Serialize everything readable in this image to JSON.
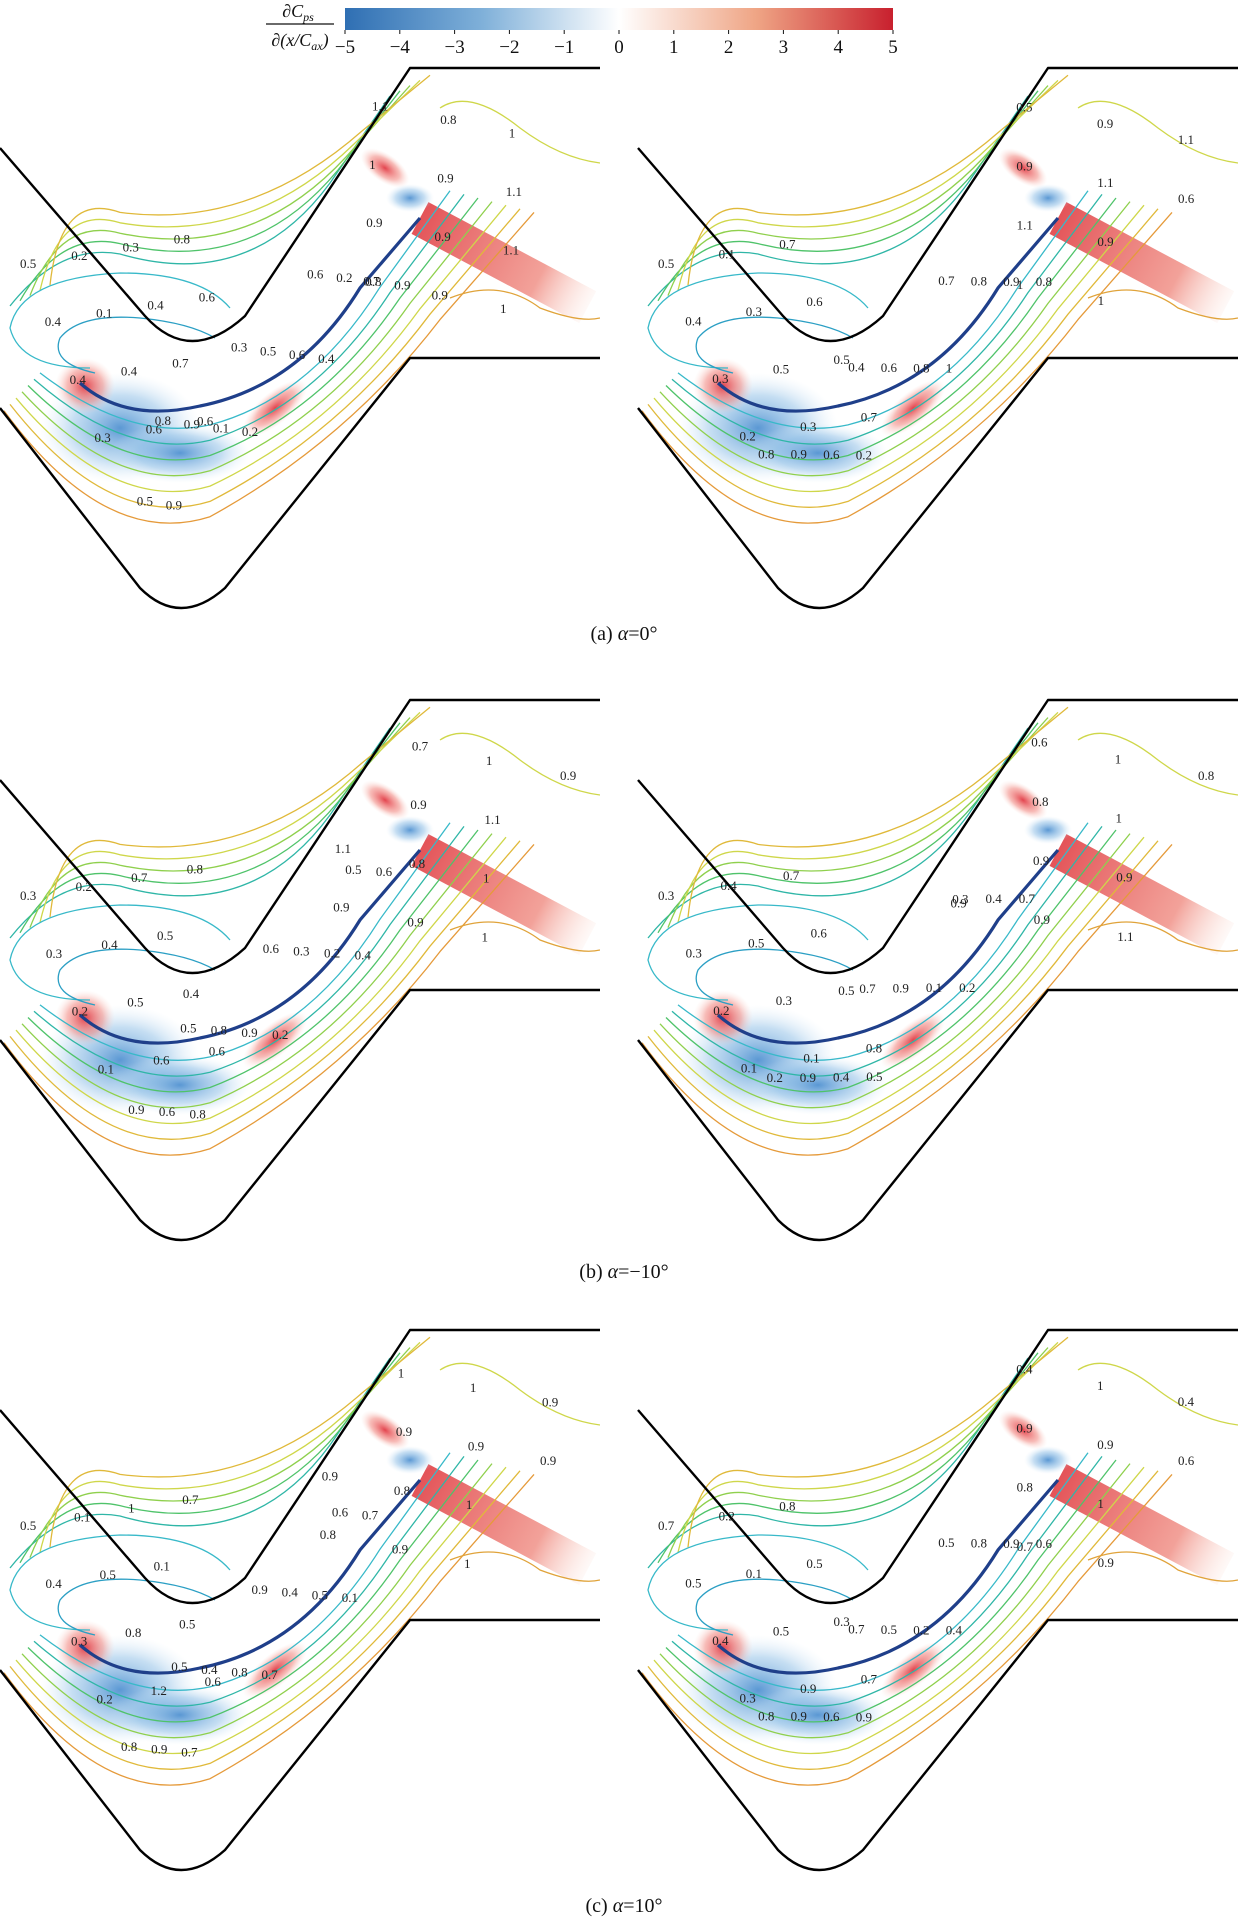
{
  "colorbar": {
    "label_numerator": "∂C",
    "label_numerator_sub": "ps",
    "label_denominator_pre": "∂(x/C",
    "label_denominator_sub": "ax",
    "label_denominator_post": ")",
    "ticks": [
      "−5",
      "−4",
      "−3",
      "−2",
      "−1",
      "0",
      "1",
      "2",
      "3",
      "4",
      "5"
    ],
    "colors": {
      "negative": "#2f6fb3",
      "zero": "#ffffff",
      "positive": "#c8202e"
    }
  },
  "panels": [
    {
      "caption_prefix": "(a) ",
      "caption_var": "α",
      "caption_value": "=0°",
      "left_labels": [
        "0.5",
        "0.4",
        "0.4",
        "0.3",
        "0.2",
        "0.1",
        "0.4",
        "0.6",
        "0.3",
        "0.4",
        "0.7",
        "0.6",
        "0.8",
        "0.6",
        "0.5",
        "0.9",
        "0.8",
        "0.9",
        "0.1",
        "0.2",
        "0.3",
        "0.5",
        "0.6",
        "0.4",
        "0.6",
        "0.2",
        "0.8",
        "0.9",
        "1.1",
        "1",
        "0.9",
        "0.7",
        "0.8",
        "0.9",
        "0.9",
        "0.9",
        "1",
        "1.1",
        "1.1",
        "1"
      ],
      "right_labels": [
        "0.5",
        "0.4",
        "0.3",
        "0.2",
        "0.1",
        "0.3",
        "0.5",
        "0.3",
        "0.7",
        "0.6",
        "0.5",
        "0.7",
        "0.8",
        "0.9",
        "0.6",
        "0.2",
        "0.4",
        "0.6",
        "0.8",
        "1",
        "0.7",
        "0.8",
        "0.9",
        "0.8",
        "0.5",
        "0.9",
        "1.1",
        "1",
        "0.9",
        "1.1",
        "0.9",
        "1",
        "1.1",
        "0.6"
      ]
    },
    {
      "caption_prefix": "(b) ",
      "caption_var": "α",
      "caption_value": "=−10°",
      "left_labels": [
        "0.3",
        "0.3",
        "0.2",
        "0.1",
        "0.2",
        "0.4",
        "0.5",
        "0.6",
        "0.7",
        "0.5",
        "0.4",
        "0.6",
        "0.8",
        "0.9",
        "0.6",
        "0.8",
        "0.5",
        "0.8",
        "0.9",
        "0.2",
        "0.6",
        "0.3",
        "0.2",
        "0.4",
        "0.5",
        "0.6",
        "1.1",
        "0.9",
        "0.7",
        "0.9",
        "0.8",
        "0.9",
        "1",
        "1.1",
        "1",
        "1",
        "0.9"
      ],
      "right_labels": [
        "0.3",
        "0.3",
        "0.2",
        "0.1",
        "0.4",
        "0.5",
        "0.3",
        "0.1",
        "0.7",
        "0.6",
        "0.5",
        "0.8",
        "0.2",
        "0.9",
        "0.4",
        "0.5",
        "0.7",
        "0.9",
        "0.1",
        "0.2",
        "0.3",
        "0.4",
        "0.7",
        "0.9",
        "0.6",
        "0.8",
        "0.9",
        "0.9",
        "1",
        "1",
        "0.9",
        "1.1",
        "0.8"
      ]
    },
    {
      "caption_prefix": "(c) ",
      "caption_var": "α",
      "caption_value": "=10°",
      "left_labels": [
        "0.5",
        "0.4",
        "0.3",
        "0.2",
        "0.1",
        "0.5",
        "0.8",
        "1.2",
        "1",
        "0.1",
        "0.5",
        "0.6",
        "0.7",
        "0.8",
        "0.9",
        "0.7",
        "0.5",
        "0.4",
        "0.8",
        "0.7",
        "0.9",
        "0.4",
        "0.5",
        "0.1",
        "0.6",
        "0.7",
        "0.9",
        "0.8",
        "1",
        "0.9",
        "0.8",
        "0.9",
        "1",
        "0.9",
        "1",
        "1",
        "0.9",
        "0.9"
      ],
      "right_labels": [
        "0.7",
        "0.5",
        "0.4",
        "0.3",
        "0.2",
        "0.1",
        "0.5",
        "0.9",
        "0.8",
        "0.5",
        "0.3",
        "0.7",
        "0.8",
        "0.9",
        "0.6",
        "0.9",
        "0.7",
        "0.5",
        "0.2",
        "0.4",
        "0.5",
        "0.8",
        "0.9",
        "0.6",
        "0.4",
        "0.9",
        "0.8",
        "0.7",
        "1",
        "0.9",
        "1",
        "0.9",
        "0.4",
        "0.6"
      ]
    }
  ]
}
